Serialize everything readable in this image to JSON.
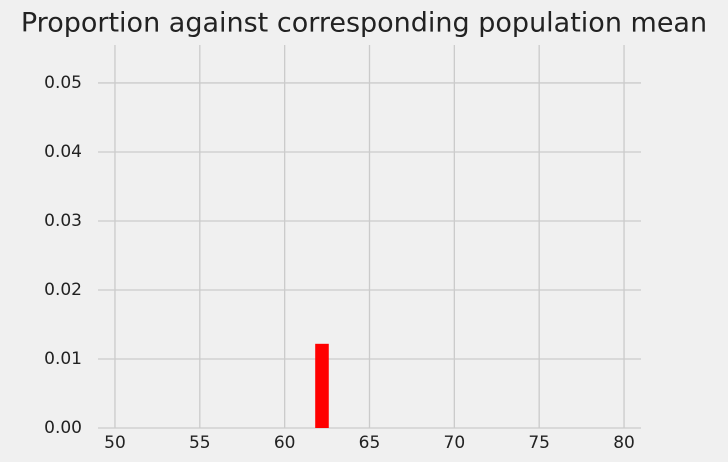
{
  "chart_data": {
    "type": "histogram",
    "title": "Proportion against corresponding population mean",
    "bins": [
      61.8,
      62.6
    ],
    "values": [
      0.0122
    ],
    "color": "#ff0000",
    "xlim": [
      49,
      81
    ],
    "xticks": [
      50,
      55,
      60,
      65,
      70,
      75,
      80
    ],
    "ylim": [
      0,
      0.0555
    ],
    "yticks": [
      {
        "value": 0,
        "label": "0.00"
      },
      0.01,
      0.02,
      0.03,
      0.04,
      0.05
    ],
    "grid": true
  }
}
